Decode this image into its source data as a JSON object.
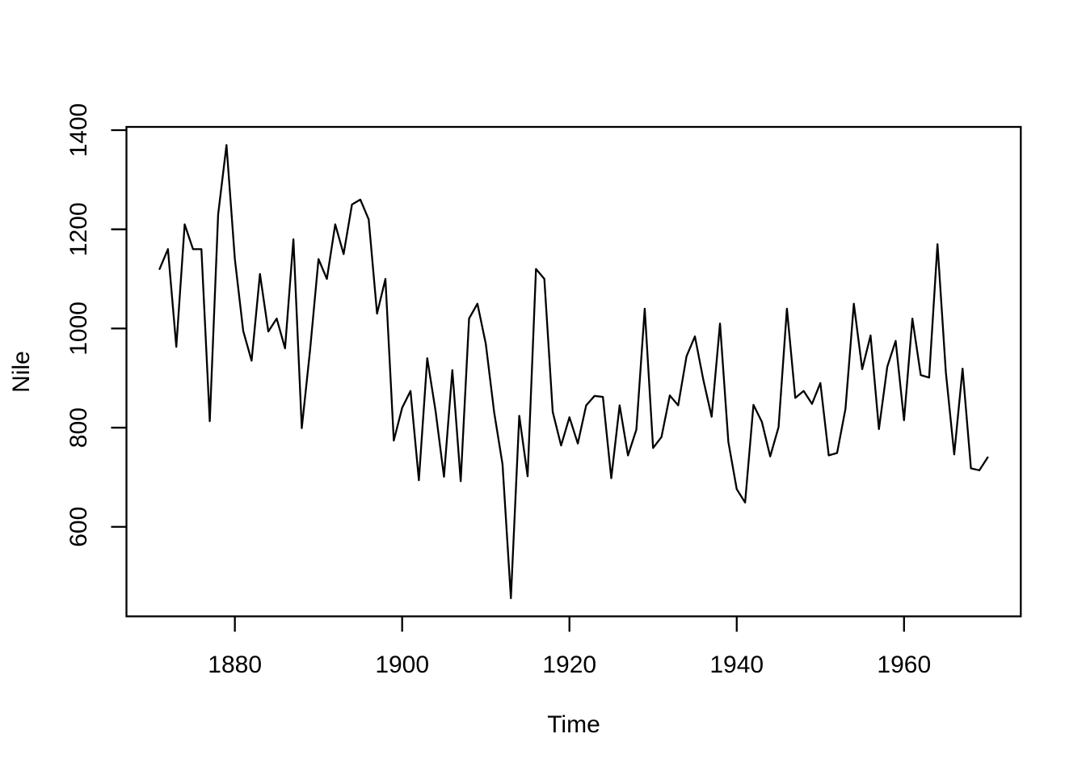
{
  "chart_data": {
    "type": "line",
    "title": "",
    "xlabel": "Time",
    "ylabel": "Nile",
    "x_start": 1871,
    "x_end": 1970,
    "x_ticks": [
      1880,
      1900,
      1920,
      1940,
      1960
    ],
    "y_ticks": [
      600,
      800,
      1000,
      1200,
      1400
    ],
    "xlim": [
      1867.04,
      1973.96
    ],
    "ylim": [
      419.44,
      1406.56
    ],
    "axis_expansion": 0.04,
    "grid": false,
    "legend": "none",
    "line_color": "#000000",
    "background": "#ffffff",
    "series": [
      {
        "name": "Nile",
        "values": [
          1120,
          1160,
          963,
          1210,
          1160,
          1160,
          813,
          1230,
          1370,
          1140,
          995,
          935,
          1110,
          994,
          1020,
          960,
          1180,
          799,
          958,
          1140,
          1100,
          1210,
          1150,
          1250,
          1260,
          1220,
          1030,
          1100,
          774,
          840,
          874,
          694,
          940,
          833,
          701,
          916,
          692,
          1020,
          1050,
          969,
          831,
          726,
          456,
          824,
          702,
          1120,
          1100,
          832,
          764,
          821,
          768,
          845,
          864,
          862,
          698,
          845,
          744,
          796,
          1040,
          759,
          781,
          865,
          845,
          944,
          984,
          897,
          822,
          1010,
          771,
          676,
          649,
          846,
          812,
          742,
          801,
          1040,
          860,
          874,
          848,
          890,
          744,
          749,
          838,
          1050,
          918,
          986,
          797,
          923,
          975,
          815,
          1020,
          906,
          901,
          1170,
          912,
          746,
          919,
          718,
          714,
          740
        ]
      }
    ]
  }
}
